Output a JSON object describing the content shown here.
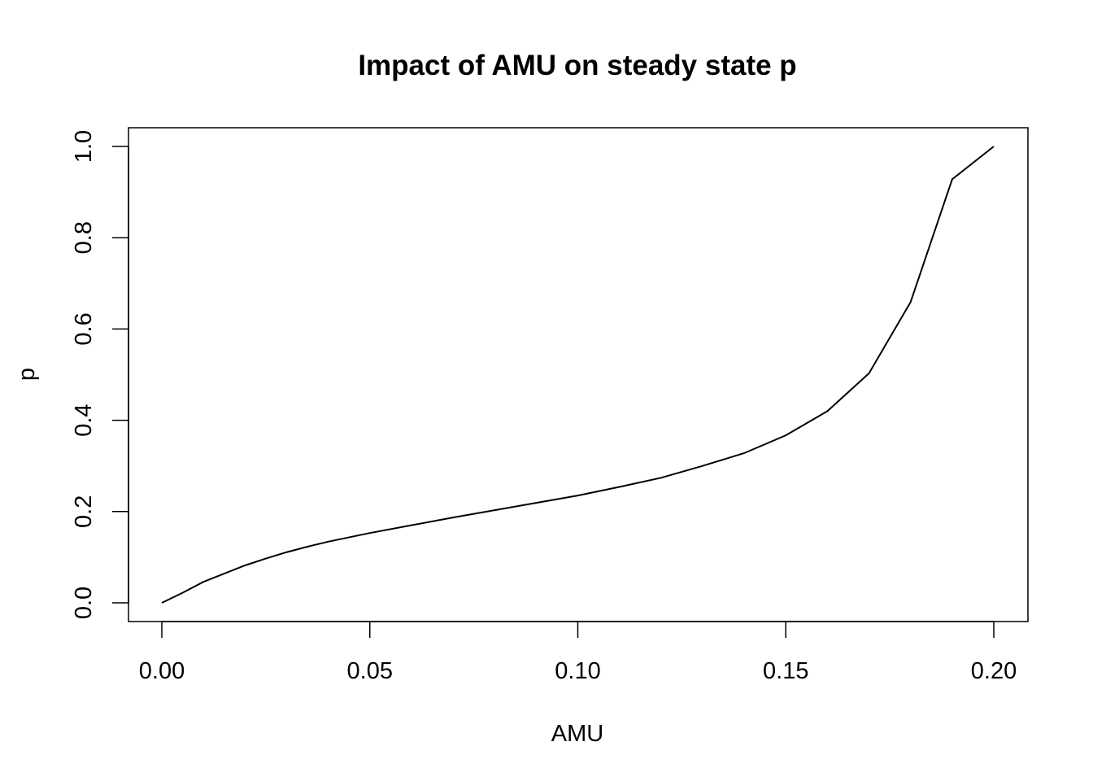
{
  "chart_data": {
    "type": "line",
    "title": "Impact of AMU on steady state p",
    "xlabel": "AMU",
    "ylabel": "p",
    "xlim": [
      0.0,
      0.2
    ],
    "ylim": [
      0.0,
      1.0
    ],
    "x_ticks": [
      "0.00",
      "0.05",
      "0.10",
      "0.15",
      "0.20"
    ],
    "x_tick_values": [
      0.0,
      0.05,
      0.1,
      0.15,
      0.2
    ],
    "y_ticks": [
      "0.0",
      "0.2",
      "0.4",
      "0.6",
      "0.8",
      "1.0"
    ],
    "y_tick_values": [
      0.0,
      0.2,
      0.4,
      0.6,
      0.8,
      1.0
    ],
    "grid": false,
    "series": [
      {
        "x": [
          0.0,
          0.005,
          0.01,
          0.015,
          0.02,
          0.025,
          0.03,
          0.035,
          0.04,
          0.05,
          0.06,
          0.07,
          0.08,
          0.09,
          0.1,
          0.11,
          0.12,
          0.13,
          0.14,
          0.15,
          0.16,
          0.17,
          0.18,
          0.19,
          0.2
        ],
        "y": [
          0.0,
          0.022,
          0.046,
          0.064,
          0.082,
          0.097,
          0.111,
          0.123,
          0.134,
          0.153,
          0.17,
          0.187,
          0.203,
          0.219,
          0.235,
          0.254,
          0.274,
          0.3,
          0.328,
          0.367,
          0.42,
          0.503,
          0.659,
          0.928,
          1.0
        ]
      }
    ]
  }
}
